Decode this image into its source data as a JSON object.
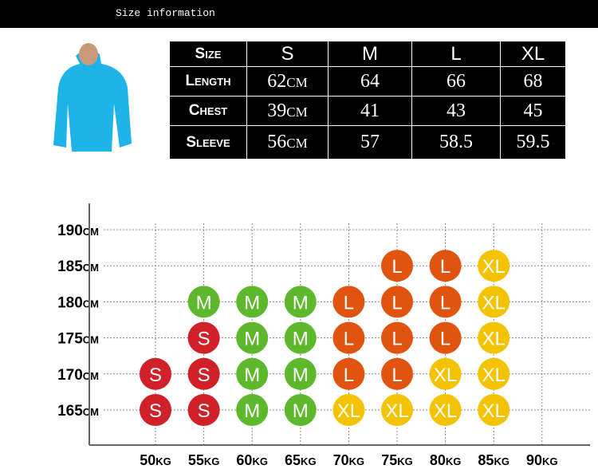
{
  "header": {
    "title": "Size information"
  },
  "table": {
    "header": [
      "Size",
      "S",
      "M",
      "L",
      "XL"
    ],
    "rows": [
      [
        "Length",
        "62cm",
        "64",
        "66",
        "68"
      ],
      [
        "Chest",
        "39cm",
        "41",
        "43",
        "45"
      ],
      [
        "Sleeve",
        "56cm",
        "57",
        "58.5",
        "59.5"
      ]
    ]
  },
  "size_grid": {
    "columns": [
      "50kg",
      "55kg",
      "60kg",
      "65kg",
      "70kg",
      "75kg",
      "80kg",
      "85kg",
      "90kg"
    ],
    "rows": [
      {
        "label": "190cm",
        "cells": [
          null,
          null,
          null,
          null,
          null,
          null,
          null,
          null,
          null
        ]
      },
      {
        "label": "185cm",
        "cells": [
          null,
          null,
          null,
          null,
          null,
          "L",
          "L",
          "XL",
          null
        ]
      },
      {
        "label": "180cm",
        "cells": [
          null,
          "M",
          "M",
          "M",
          "L",
          "L",
          "L",
          "XL",
          null
        ]
      },
      {
        "label": "175cm",
        "cells": [
          null,
          "S",
          "M",
          "M",
          "L",
          "L",
          "L",
          "XL",
          null
        ]
      },
      {
        "label": "170cm",
        "cells": [
          "S",
          "S",
          "M",
          "M",
          "L",
          "L",
          "XL",
          "XL",
          null
        ]
      },
      {
        "label": "165cm",
        "cells": [
          "S",
          "S",
          "M",
          "M",
          "XL",
          "XL",
          "XL",
          "XL",
          null
        ]
      }
    ],
    "colors": {
      "S": "#d02128",
      "M": "#5db82c",
      "L": "#e05410",
      "XL": "#f3c300"
    }
  }
}
